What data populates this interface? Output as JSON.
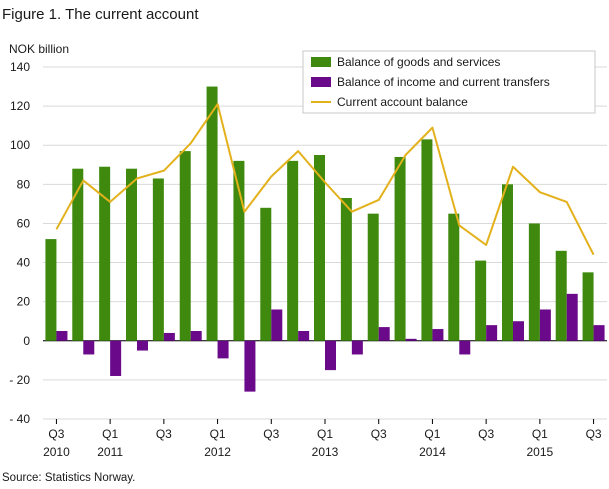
{
  "figure": {
    "title": "Figure 1. The current account",
    "source": "Source: Statistics Norway."
  },
  "chart_data": {
    "type": "bar",
    "ylabel": "NOK billion",
    "ylim": [
      -40,
      140
    ],
    "yticks": [
      -40,
      -20,
      0,
      20,
      40,
      60,
      80,
      100,
      120,
      140
    ],
    "ytick_labels": [
      "- 40",
      "- 20",
      "0",
      "20",
      "40",
      "60",
      "80",
      "100",
      "120",
      "140"
    ],
    "grid": true,
    "legend_position": "top-right",
    "categories": [
      "2010 Q3",
      "2010 Q4",
      "2011 Q1",
      "2011 Q2",
      "2011 Q3",
      "2011 Q4",
      "2012 Q1",
      "2012 Q2",
      "2012 Q3",
      "2012 Q4",
      "2013 Q1",
      "2013 Q2",
      "2013 Q3",
      "2013 Q4",
      "2014 Q1",
      "2014 Q2",
      "2014 Q3",
      "2014 Q4",
      "2015 Q1",
      "2015 Q2",
      "2015 Q3"
    ],
    "x_tick_labels": [
      {
        "index": 0,
        "quarter": "Q3",
        "year": "2010"
      },
      {
        "index": 2,
        "quarter": "Q1",
        "year": "2011"
      },
      {
        "index": 4,
        "quarter": "Q3",
        "year": ""
      },
      {
        "index": 6,
        "quarter": "Q1",
        "year": "2012"
      },
      {
        "index": 8,
        "quarter": "Q3",
        "year": ""
      },
      {
        "index": 10,
        "quarter": "Q1",
        "year": "2013"
      },
      {
        "index": 12,
        "quarter": "Q3",
        "year": ""
      },
      {
        "index": 14,
        "quarter": "Q1",
        "year": "2014"
      },
      {
        "index": 16,
        "quarter": "Q3",
        "year": ""
      },
      {
        "index": 18,
        "quarter": "Q1",
        "year": "2015"
      },
      {
        "index": 20,
        "quarter": "Q3",
        "year": ""
      }
    ],
    "series": [
      {
        "name": "Balance of goods and services",
        "kind": "bar",
        "color": "#3f8a0e",
        "values": [
          52,
          88,
          89,
          88,
          83,
          97,
          130,
          92,
          68,
          92,
          95,
          73,
          65,
          94,
          103,
          65,
          41,
          80,
          60,
          46,
          35
        ]
      },
      {
        "name": "Balance of income and current transfers",
        "kind": "bar",
        "color": "#6a0a8a",
        "values": [
          5,
          -7,
          -18,
          -5,
          4,
          5,
          -9,
          -26,
          16,
          5,
          -15,
          -7,
          7,
          1,
          6,
          -7,
          8,
          10,
          16,
          24,
          8
        ]
      },
      {
        "name": "Current account balance",
        "kind": "line",
        "color": "#e3b11b",
        "values": [
          57,
          82,
          71,
          83,
          87,
          101,
          121,
          66,
          84,
          97,
          81,
          66,
          72,
          95,
          109,
          59,
          49,
          89,
          76,
          71,
          44
        ]
      }
    ]
  }
}
